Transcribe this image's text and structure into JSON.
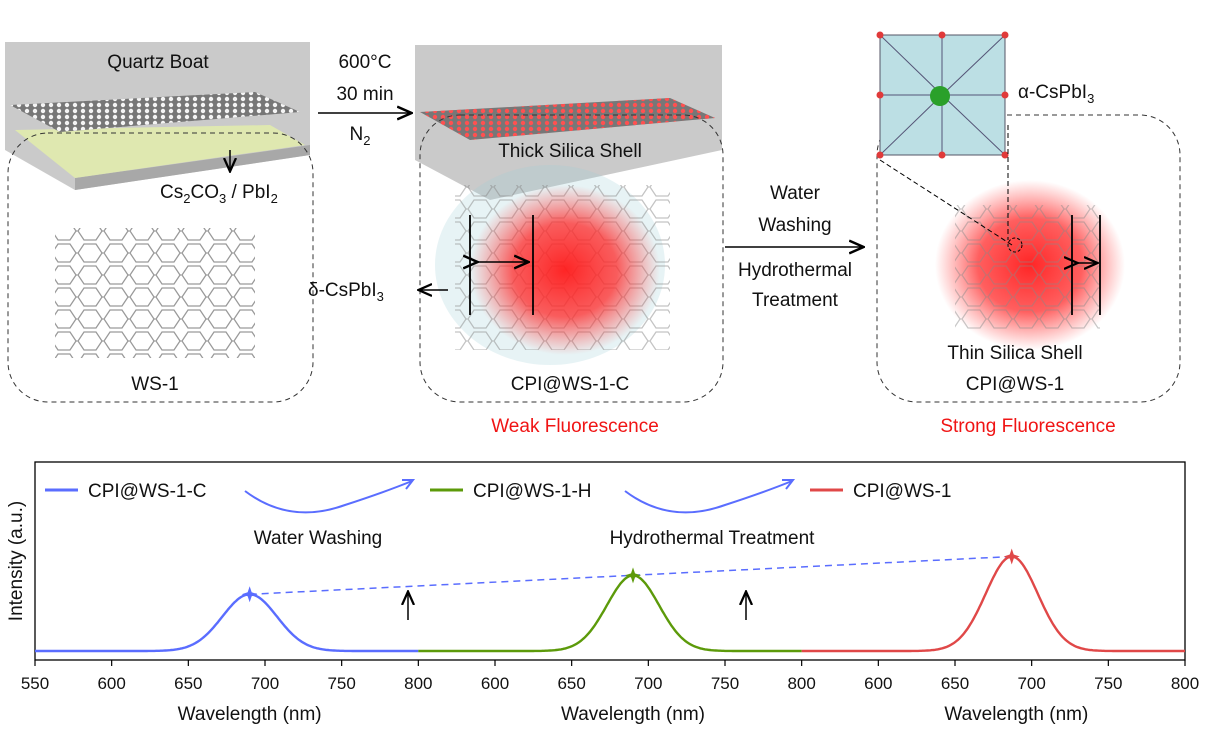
{
  "diagram": {
    "step1": {
      "boat_label": "Quartz Boat",
      "precursor_parts": [
        "Cs",
        "2",
        "CO",
        "3",
        " / PbI",
        "2"
      ],
      "framework_label": "WS-1"
    },
    "reaction": {
      "temperature": "600°C",
      "time": "30 min",
      "atmosphere_parts": [
        "N",
        "2"
      ]
    },
    "step2": {
      "shell_label": "Thick Silica Shell",
      "delta_phase_parts": [
        "δ-CsPbI",
        "3"
      ],
      "product_label": "CPI@WS-1-C",
      "fluorescence": "Weak Fluorescence"
    },
    "treatment": {
      "line1": "Water",
      "line2": "Washing",
      "line3": "Hydrothermal",
      "line4": "Treatment"
    },
    "step3": {
      "alpha_phase_parts": [
        "α-CsPbI",
        "3"
      ],
      "shell_label": "Thin Silica Shell",
      "product_label": "CPI@WS-1",
      "fluorescence": "Strong Fluorescence"
    },
    "colors": {
      "fluorescence_red": "#f01414",
      "boat_gray": "#b8b8b8",
      "precursor_yellow": "#dfe8b0"
    }
  },
  "chart_data": {
    "type": "line",
    "ylabel": "Intensity (a.u.)",
    "xlabel": "Wavelength (nm)",
    "xlim": [
      550,
      800
    ],
    "ylim": [
      0,
      1
    ],
    "xticks": [
      "550",
      "600",
      "650",
      "700",
      "750",
      "800"
    ],
    "xticks_rest": [
      "600",
      "650",
      "700",
      "750",
      "800"
    ],
    "series": [
      {
        "name": "CPI@WS-1-C",
        "color": "#5a6dff",
        "peak_nm": 690,
        "peak_intensity": 0.3,
        "fwhm_nm": 42
      },
      {
        "name": "CPI@WS-1-H",
        "color": "#5c9a0a",
        "peak_nm": 690,
        "peak_intensity": 0.4,
        "fwhm_nm": 40
      },
      {
        "name": "CPI@WS-1",
        "color": "#e04848",
        "peak_nm": 687,
        "peak_intensity": 0.5,
        "fwhm_nm": 40
      }
    ],
    "annotations": {
      "step1": "Water Washing",
      "step2": "Hydrothermal Treatment"
    }
  }
}
